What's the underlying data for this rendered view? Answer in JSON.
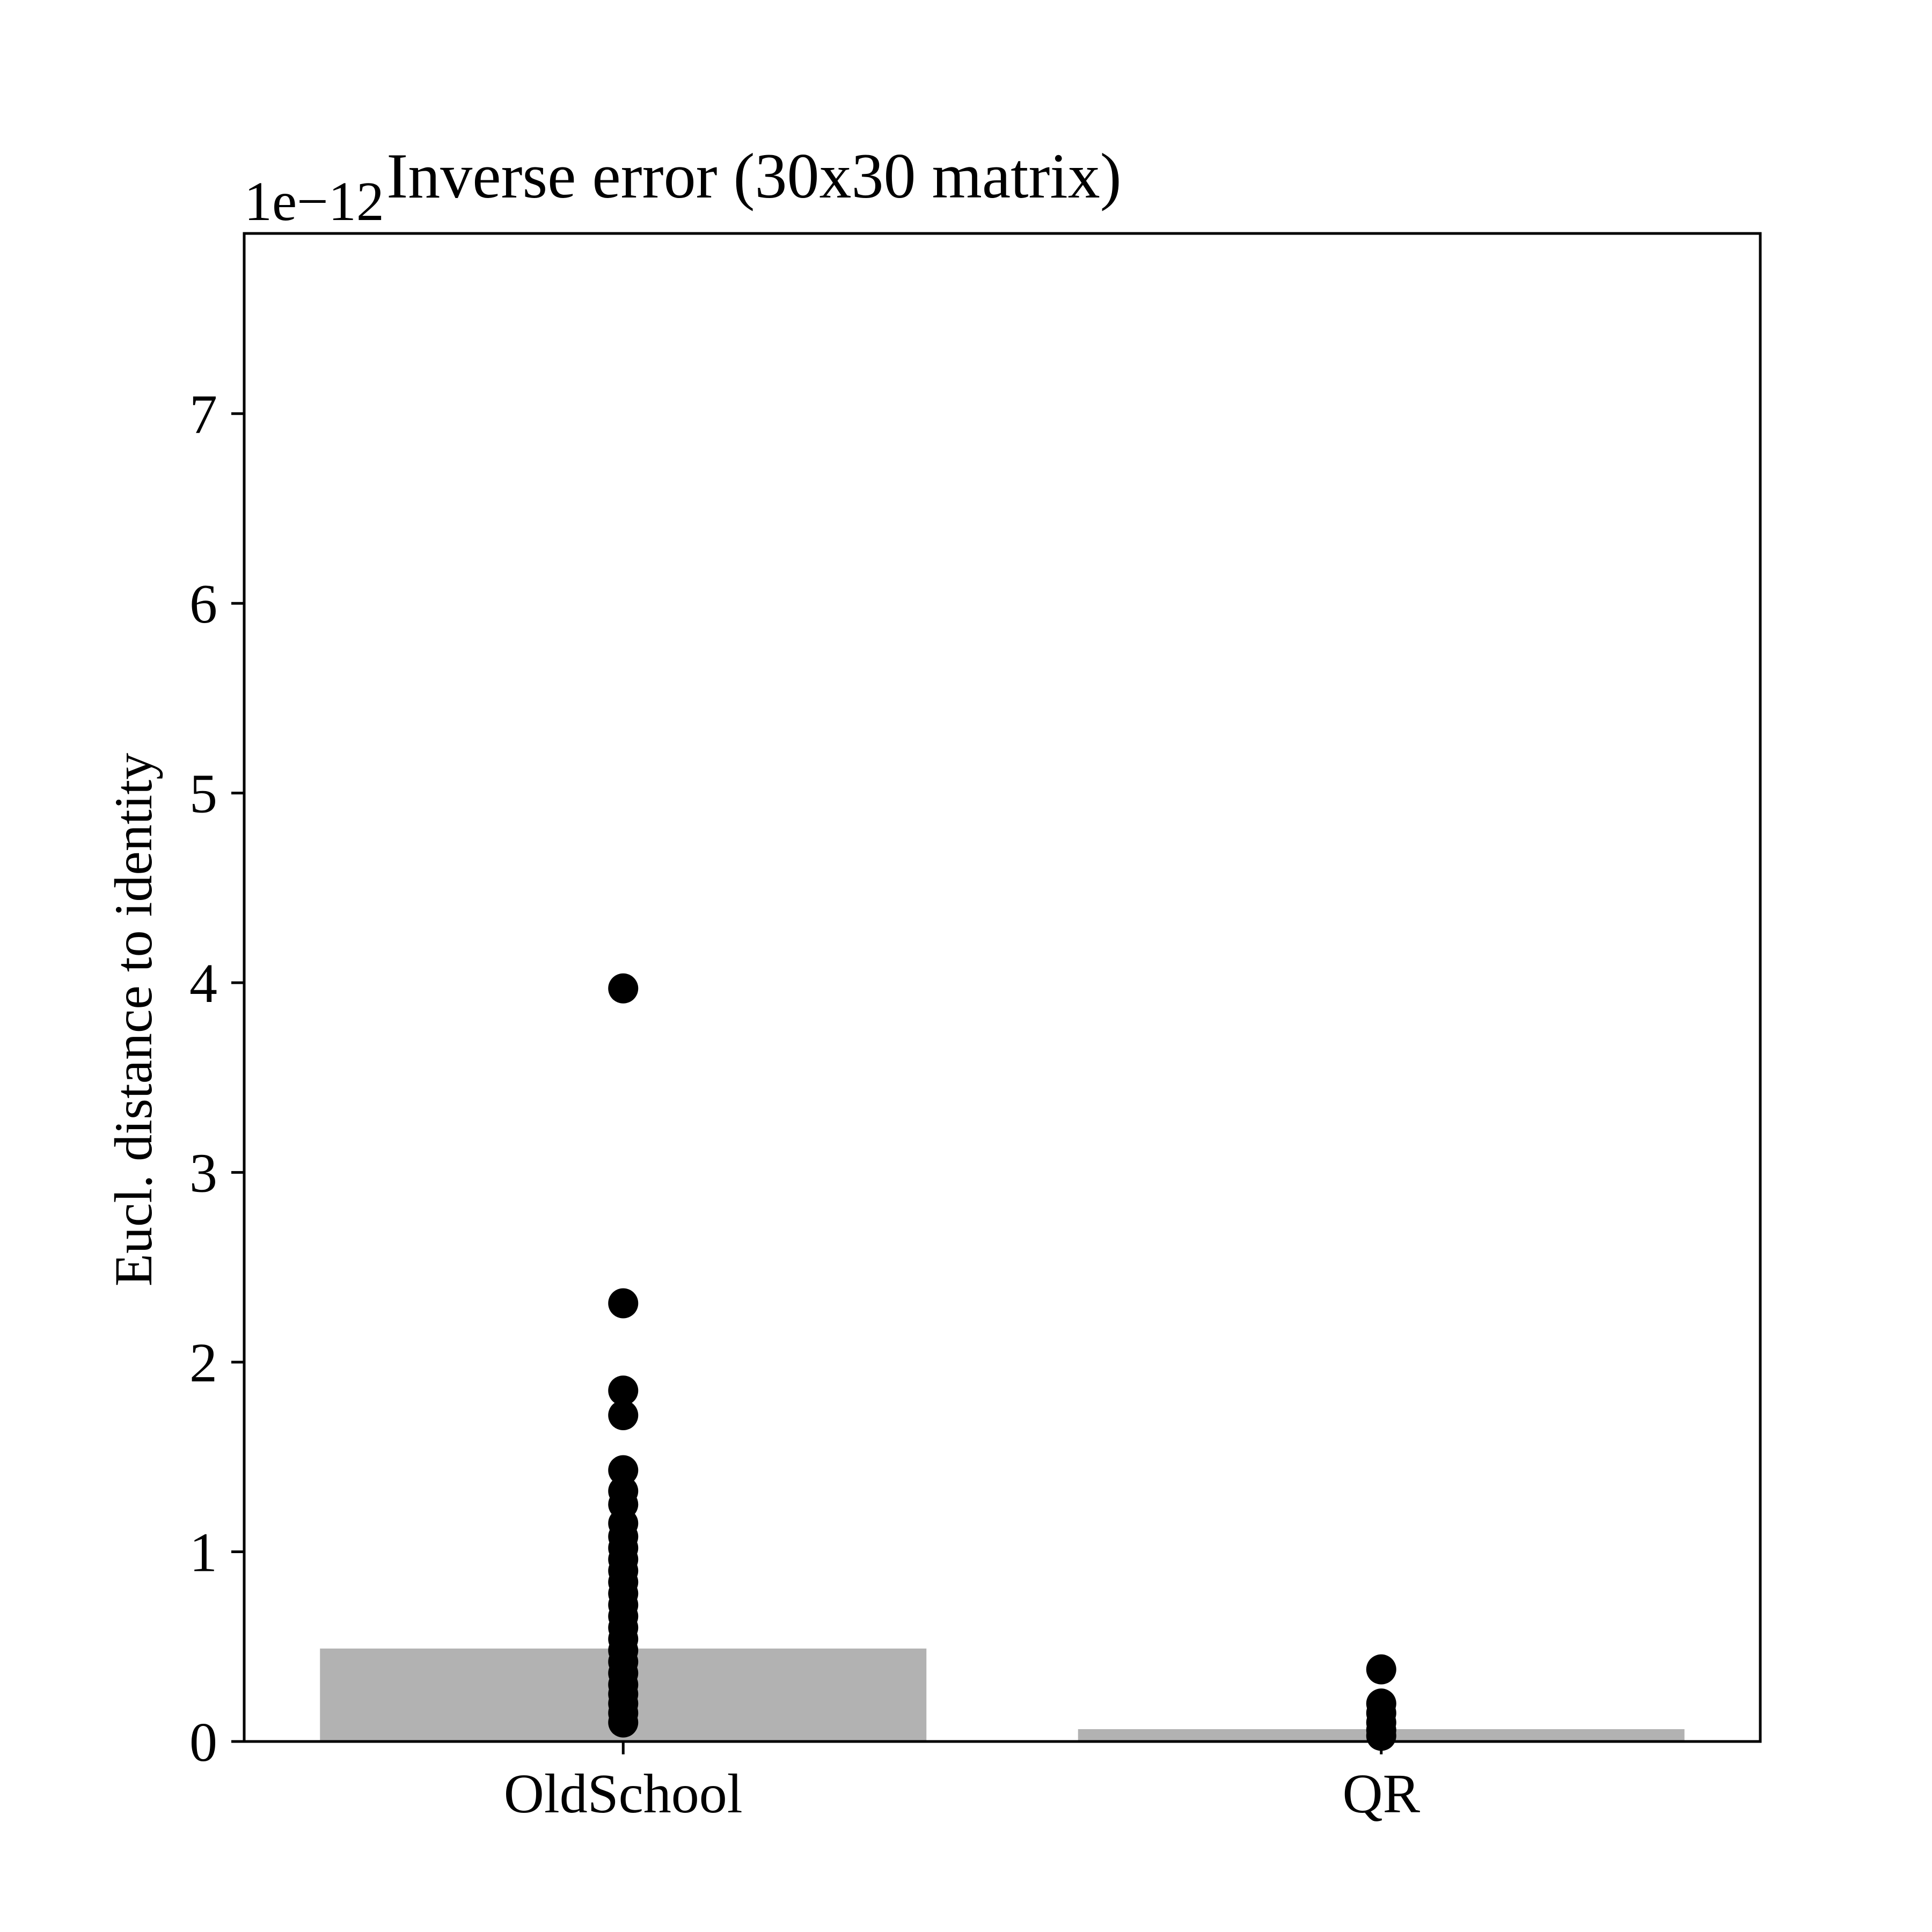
{
  "chart_data": {
    "type": "bar",
    "title": "Inverse error (30x30 matrix)",
    "xlabel": "",
    "ylabel": "Eucl. distance to identity",
    "scale_label": "1e−12",
    "categories": [
      "OldSchool",
      "QR"
    ],
    "values": [
      0.49,
      0.065
    ],
    "ylim": [
      0,
      7.95
    ],
    "yticks": [
      0,
      1,
      2,
      3,
      4,
      5,
      6,
      7
    ],
    "grid": false,
    "bar_color": "#b2b2b2",
    "point_color": "#000000",
    "points": [
      {
        "category": "OldSchool",
        "values": [
          3.97,
          2.31,
          1.85,
          1.72,
          1.43,
          1.32,
          1.25,
          1.15,
          1.08,
          1.02,
          0.96,
          0.9,
          0.84,
          0.78,
          0.72,
          0.66,
          0.6,
          0.54,
          0.48,
          0.42,
          0.36,
          0.3,
          0.25,
          0.2,
          0.15,
          0.1
        ]
      },
      {
        "category": "QR",
        "values": [
          0.38,
          0.2,
          0.15,
          0.1,
          0.06,
          0.03
        ]
      }
    ]
  }
}
